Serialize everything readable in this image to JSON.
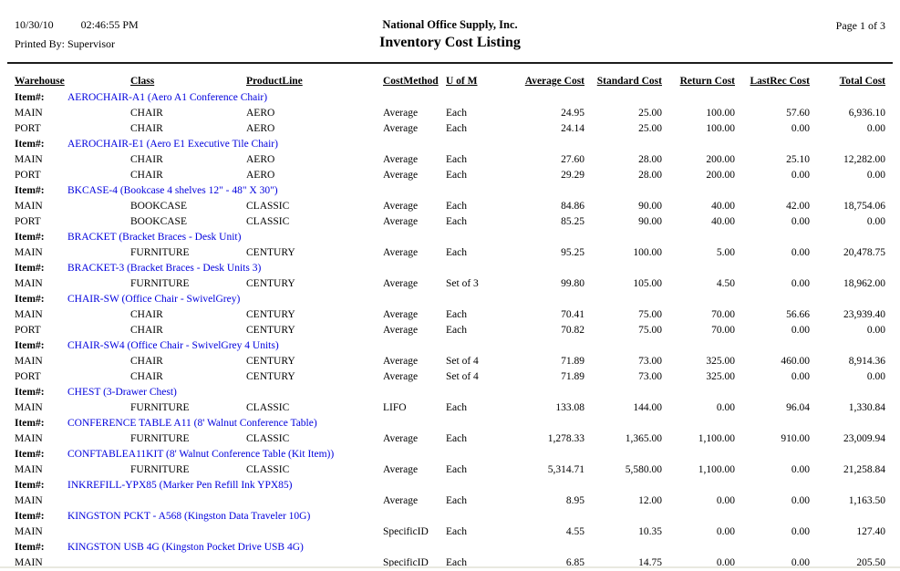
{
  "report": {
    "date": "10/30/10",
    "time": "02:46:55 PM",
    "printed_by": "Printed By: Supervisor",
    "company": "National Office Supply, Inc.",
    "title": "Inventory Cost Listing",
    "page_label": "Page 1 of 3"
  },
  "colors": {
    "item_link": "#0000dd",
    "rule": "#1c1c1c",
    "bottom_line": "#e9e9e0"
  },
  "table": {
    "item_label": "Item#:",
    "columns": [
      "Warehouse",
      "Class",
      "ProductLine",
      "CostMethod",
      "U of M",
      "Average Cost",
      "Standard Cost",
      "Return Cost",
      "LastRec Cost",
      "Total Cost"
    ],
    "groups": [
      {
        "item": "AEROCHAIR-A1 (Aero A1 Conference Chair)",
        "rows": [
          [
            "MAIN",
            "CHAIR",
            "AERO",
            "Average",
            "Each",
            "24.95",
            "25.00",
            "100.00",
            "57.60",
            "6,936.10"
          ],
          [
            "PORT",
            "CHAIR",
            "AERO",
            "Average",
            "Each",
            "24.14",
            "25.00",
            "100.00",
            "0.00",
            "0.00"
          ]
        ]
      },
      {
        "item": "AEROCHAIR-E1 (Aero E1 Executive Tile Chair)",
        "rows": [
          [
            "MAIN",
            "CHAIR",
            "AERO",
            "Average",
            "Each",
            "27.60",
            "28.00",
            "200.00",
            "25.10",
            "12,282.00"
          ],
          [
            "PORT",
            "CHAIR",
            "AERO",
            "Average",
            "Each",
            "29.29",
            "28.00",
            "200.00",
            "0.00",
            "0.00"
          ]
        ]
      },
      {
        "item": "BKCASE-4 (Bookcase 4 shelves 12\" - 48\" X 30\")",
        "rows": [
          [
            "MAIN",
            "BOOKCASE",
            "CLASSIC",
            "Average",
            "Each",
            "84.86",
            "90.00",
            "40.00",
            "42.00",
            "18,754.06"
          ],
          [
            "PORT",
            "BOOKCASE",
            "CLASSIC",
            "Average",
            "Each",
            "85.25",
            "90.00",
            "40.00",
            "0.00",
            "0.00"
          ]
        ]
      },
      {
        "item": "BRACKET (Bracket Braces - Desk Unit)",
        "rows": [
          [
            "MAIN",
            "FURNITURE",
            "CENTURY",
            "Average",
            "Each",
            "95.25",
            "100.00",
            "5.00",
            "0.00",
            "20,478.75"
          ]
        ]
      },
      {
        "item": "BRACKET-3 (Bracket Braces - Desk Units 3)",
        "rows": [
          [
            "MAIN",
            "FURNITURE",
            "CENTURY",
            "Average",
            "Set of 3",
            "99.80",
            "105.00",
            "4.50",
            "0.00",
            "18,962.00"
          ]
        ]
      },
      {
        "item": "CHAIR-SW (Office Chair - SwivelGrey)",
        "rows": [
          [
            "MAIN",
            "CHAIR",
            "CENTURY",
            "Average",
            "Each",
            "70.41",
            "75.00",
            "70.00",
            "56.66",
            "23,939.40"
          ],
          [
            "PORT",
            "CHAIR",
            "CENTURY",
            "Average",
            "Each",
            "70.82",
            "75.00",
            "70.00",
            "0.00",
            "0.00"
          ]
        ]
      },
      {
        "item": "CHAIR-SW4 (Office Chair - SwivelGrey 4 Units)",
        "rows": [
          [
            "MAIN",
            "CHAIR",
            "CENTURY",
            "Average",
            "Set of 4",
            "71.89",
            "73.00",
            "325.00",
            "460.00",
            "8,914.36"
          ],
          [
            "PORT",
            "CHAIR",
            "CENTURY",
            "Average",
            "Set of 4",
            "71.89",
            "73.00",
            "325.00",
            "0.00",
            "0.00"
          ]
        ]
      },
      {
        "item": "CHEST (3-Drawer Chest)",
        "rows": [
          [
            "MAIN",
            "FURNITURE",
            "CLASSIC",
            "LIFO",
            "Each",
            "133.08",
            "144.00",
            "0.00",
            "96.04",
            "1,330.84"
          ]
        ]
      },
      {
        "item": "CONFERENCE TABLE A11 (8' Walnut Conference Table)",
        "rows": [
          [
            "MAIN",
            "FURNITURE",
            "CLASSIC",
            "Average",
            "Each",
            "1,278.33",
            "1,365.00",
            "1,100.00",
            "910.00",
            "23,009.94"
          ]
        ]
      },
      {
        "item": "CONFTABLEA11KIT (8' Walnut Conference Table (Kit Item))",
        "rows": [
          [
            "MAIN",
            "FURNITURE",
            "CLASSIC",
            "Average",
            "Each",
            "5,314.71",
            "5,580.00",
            "1,100.00",
            "0.00",
            "21,258.84"
          ]
        ]
      },
      {
        "item": "INKREFILL-YPX85 (Marker Pen Refill Ink YPX85)",
        "rows": [
          [
            "MAIN",
            "",
            "",
            "Average",
            "Each",
            "8.95",
            "12.00",
            "0.00",
            "0.00",
            "1,163.50"
          ]
        ]
      },
      {
        "item": "KINGSTON PCKT - A568 (Kingston Data Traveler 10G)",
        "rows": [
          [
            "MAIN",
            "",
            "",
            "SpecificID",
            "Each",
            "4.55",
            "10.35",
            "0.00",
            "0.00",
            "127.40"
          ]
        ]
      },
      {
        "item": "KINGSTON USB 4G (Kingston Pocket Drive USB 4G)",
        "rows": [
          [
            "MAIN",
            "",
            "",
            "SpecificID",
            "Each",
            "6.85",
            "14.75",
            "0.00",
            "0.00",
            "205.50"
          ]
        ]
      }
    ]
  }
}
